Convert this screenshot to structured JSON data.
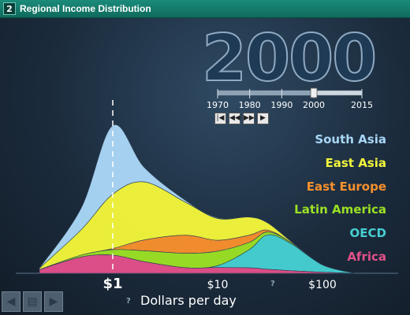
{
  "header": {
    "number": "2",
    "title": "Regional Income Distribution"
  },
  "year": "2000",
  "timeline": {
    "ticks": [
      "1970",
      "1980",
      "1990",
      "2000",
      "2015"
    ],
    "current": "2000",
    "controls": [
      "|◀",
      "◀◀",
      "▶▶",
      "▶"
    ]
  },
  "colors": {
    "south_asia": "#a9d6f5",
    "east_asia": "#f2f53a",
    "east_europe": "#f7902c",
    "latin_america": "#9be024",
    "oecd": "#46cfd1",
    "africa": "#e2508a"
  },
  "chart_data": {
    "type": "area",
    "stacked": true,
    "xlabel": "Dollars per day",
    "xscale": "log",
    "x_ticks": [
      "$1",
      "$10",
      "$100"
    ],
    "reference_line": "$1",
    "x": [
      0.2,
      0.5,
      1,
      2,
      5,
      10,
      20,
      30,
      50,
      100,
      200
    ],
    "series": [
      {
        "name": "Africa",
        "values": [
          1,
          4.5,
          5,
          3.2,
          1.5,
          1.6,
          1.5,
          1.1,
          0.7,
          0.3,
          0
        ]
      },
      {
        "name": "OECD",
        "values": [
          0,
          0,
          0,
          0,
          0,
          0.5,
          5,
          9.5,
          7.5,
          2,
          0
        ]
      },
      {
        "name": "Latin America",
        "values": [
          0,
          0.5,
          1.5,
          3,
          4,
          4,
          2,
          0.8,
          0.3,
          0,
          0
        ]
      },
      {
        "name": "East Europe",
        "values": [
          0,
          0,
          0.3,
          3,
          5,
          3,
          2,
          0.5,
          0,
          0,
          0
        ]
      },
      {
        "name": "East Asia",
        "values": [
          0.4,
          7,
          15,
          16,
          9,
          6,
          5,
          2,
          0.3,
          0,
          0
        ]
      },
      {
        "name": "South Asia",
        "values": [
          0,
          6,
          19,
          4,
          0.5,
          0.2,
          0,
          0,
          0,
          0,
          0
        ]
      }
    ]
  },
  "legend": [
    "South Asia",
    "East Asia",
    "East Europe",
    "Latin America",
    "OECD",
    "Africa"
  ],
  "help": "?"
}
